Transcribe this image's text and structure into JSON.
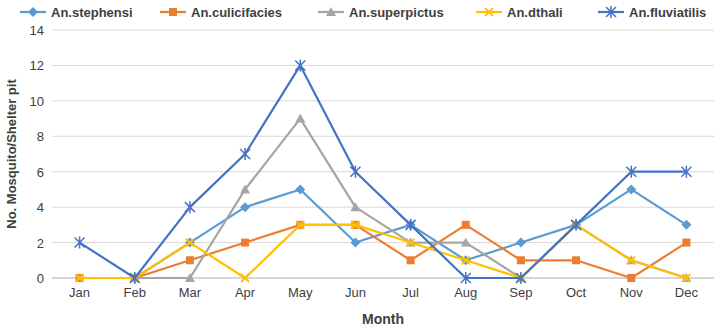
{
  "chart_data": {
    "type": "line",
    "x_label": "Month",
    "y_label": "No. Mosquito/Shelter pit",
    "categories": [
      "Jan",
      "Feb",
      "Mar",
      "Apr",
      "May",
      "Jun",
      "Jul",
      "Aug",
      "Sep",
      "Oct",
      "Nov",
      "Dec"
    ],
    "series": [
      {
        "name": "An.stephensi",
        "color": "#5b9bd5",
        "marker": "diamond",
        "values": [
          null,
          0,
          2,
          4,
          5,
          2,
          3,
          1,
          2,
          3,
          5,
          3
        ]
      },
      {
        "name": "An.culicifacies",
        "color": "#ed7d31",
        "marker": "square",
        "values": [
          0,
          0,
          1,
          2,
          3,
          3,
          1,
          3,
          1,
          1,
          0,
          2
        ]
      },
      {
        "name": "An.superpictus",
        "color": "#a5a5a5",
        "marker": "triangle",
        "values": [
          null,
          0,
          0,
          5,
          9,
          4,
          2,
          2,
          0,
          3,
          1,
          0
        ]
      },
      {
        "name": "An.dthali",
        "color": "#ffc000",
        "marker": "x",
        "values": [
          0,
          0,
          2,
          0,
          3,
          3,
          2,
          1,
          0,
          3,
          1,
          0
        ]
      },
      {
        "name": "An.fluviatilis",
        "color": "#4472c4",
        "marker": "star",
        "values": [
          2,
          0,
          4,
          7,
          12,
          6,
          3,
          0,
          0,
          3,
          6,
          6
        ]
      }
    ],
    "ylim": [
      0,
      14
    ],
    "yticks": [
      0,
      2,
      4,
      6,
      8,
      10,
      12,
      14
    ],
    "grid": true,
    "legend": "top"
  }
}
